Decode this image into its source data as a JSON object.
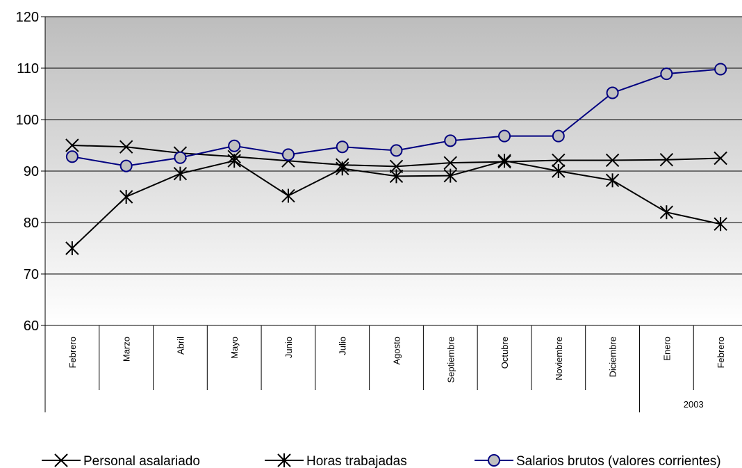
{
  "chart_data": {
    "type": "line",
    "title": "",
    "xlabel": "",
    "ylabel": "",
    "ylim": [
      60,
      120
    ],
    "yticks": [
      60,
      70,
      80,
      90,
      100,
      110,
      120
    ],
    "grid": true,
    "legend_position": "bottom",
    "categories": [
      "Febrero",
      "Marzo",
      "Abril",
      "Mayo",
      "Junio",
      "Julio",
      "Agosto",
      "Septiembre",
      "Octubre",
      "Noviembre",
      "Diciembre",
      "Enero",
      "Febrero"
    ],
    "year_groups": [
      {
        "label": "",
        "start": 0,
        "end": 10
      },
      {
        "label": "2003",
        "start": 11,
        "end": 12
      }
    ],
    "series": [
      {
        "name": "Personal asalariado",
        "marker": "x",
        "color": "#000000",
        "values": [
          95.0,
          94.7,
          93.5,
          92.8,
          92.0,
          91.2,
          90.9,
          91.6,
          91.8,
          92.1,
          92.1,
          92.2,
          92.5
        ]
      },
      {
        "name": "Horas trabajadas",
        "marker": "star",
        "color": "#000000",
        "values": [
          75.0,
          85.0,
          89.5,
          92.0,
          85.2,
          90.5,
          89.0,
          89.1,
          92.0,
          90.0,
          88.2,
          82.0,
          79.7
        ]
      },
      {
        "name": "Salarios brutos (valores corrientes)",
        "marker": "circle",
        "color": "#000080",
        "fill": "#c0c0c0",
        "values": [
          92.8,
          91.0,
          92.6,
          94.9,
          93.2,
          94.7,
          94.0,
          95.9,
          96.8,
          96.8,
          105.2,
          108.9,
          109.8
        ]
      }
    ]
  }
}
